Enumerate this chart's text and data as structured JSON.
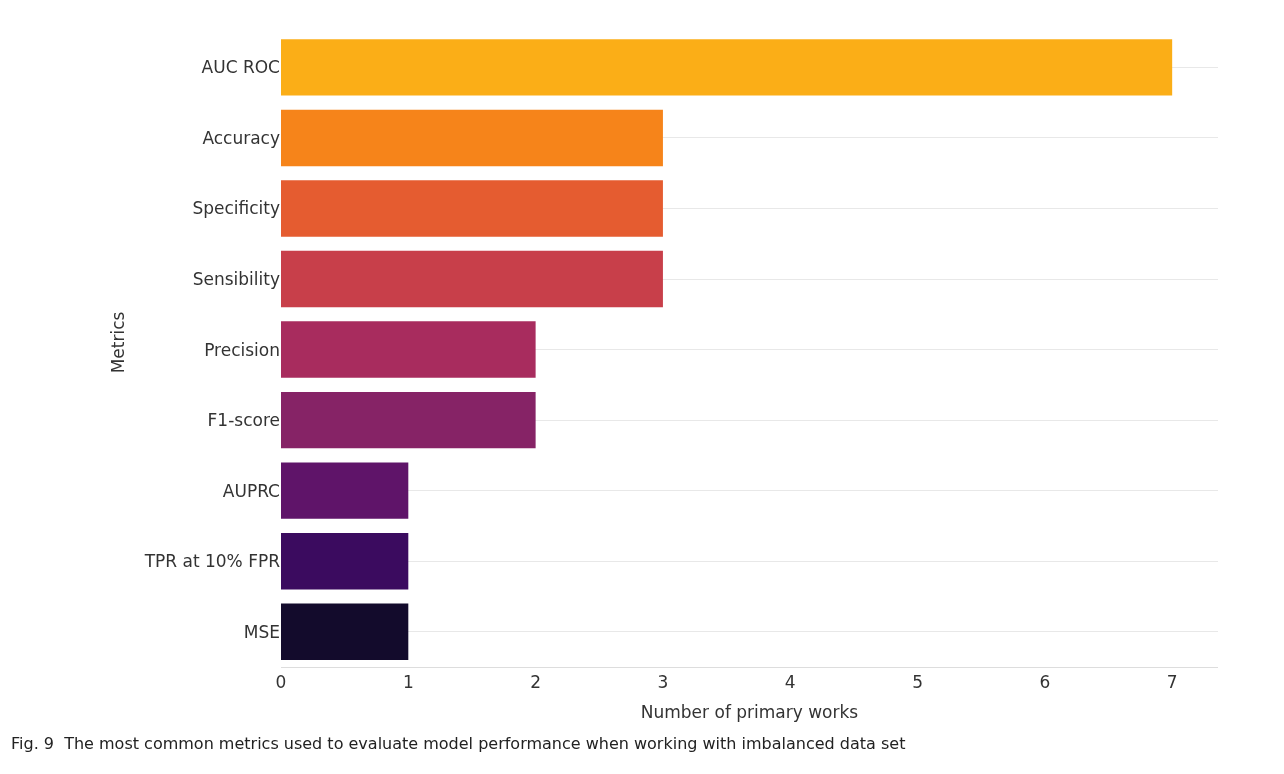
{
  "chart_data": {
    "type": "bar",
    "orientation": "horizontal",
    "categories": [
      "AUC ROC",
      "Accuracy",
      "Specificity",
      "Sensibility",
      "Precision",
      "F1-score",
      "AUPRC",
      "TPR at 10% FPR",
      "MSE"
    ],
    "values": [
      7,
      3,
      3,
      3,
      2,
      2,
      1,
      1,
      1
    ],
    "colors": [
      "#fbae17",
      "#f6841a",
      "#e55c30",
      "#c83f4a",
      "#a82c5e",
      "#862366",
      "#5f1469",
      "#3b0b5f",
      "#130b2c"
    ],
    "xlabel": "Number of primary works",
    "ylabel": "Metrics",
    "xlim": [
      0,
      7.36
    ],
    "xticks": [
      0,
      1,
      2,
      3,
      4,
      5,
      6,
      7
    ],
    "grid": "y",
    "annotations": [
      "Fig. 9  The most common metrics used to evaluate model performance when working with imbalanced data set"
    ]
  }
}
